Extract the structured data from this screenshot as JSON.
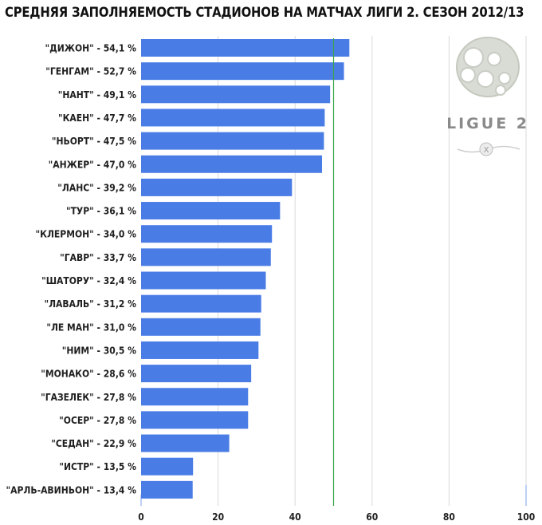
{
  "chart_data": {
    "type": "bar",
    "orientation": "horizontal",
    "title": "СРЕДНЯЯ ЗАПОЛНЯЕМОСТЬ СТАДИОНОВ НА МАТЧАХ ЛИГИ 2. СЕЗОН 2012/13",
    "categories": [
      "\"ДИЖОН\" - 54,1 %",
      "\"ГЕНГАМ\" - 52,7 %",
      "\"НАНТ\" - 49,1 %",
      "\"КАЕН\" - 47,7 %",
      "\"НЬОРТ\" - 47,5 %",
      "\"АНЖЕР\" - 47,0 %",
      "\"ЛАНС\" - 39,2 %",
      "\"ТУР\" - 36,1 %",
      "\"КЛЕРМОН\" - 34,0 %",
      "\"ГАВР\" - 33,7 %",
      "\"ШАТОРУ\" - 32,4 %",
      "\"ЛАВАЛЬ\" - 31,2 %",
      "\"ЛЕ МАН\" - 31,0 %",
      "\"НИМ\" - 30,5 %",
      "\"МОНАКО\" - 28,6 %",
      "\"ГАЗЕЛЕК\" - 27,8 %",
      "\"ОСЕР\" - 27,8 %",
      "\"СЕДАН\" - 22,9 %",
      "\"ИСТР\" - 13,5 %",
      "\"АРЛЬ-АВИНЬОН\" - 13,4 %"
    ],
    "values": [
      54.1,
      52.7,
      49.1,
      47.7,
      47.5,
      47.0,
      39.2,
      36.1,
      34.0,
      33.7,
      32.4,
      31.2,
      31.0,
      30.5,
      28.6,
      27.8,
      27.8,
      22.9,
      13.5,
      13.4
    ],
    "xlim": [
      0,
      100
    ],
    "xticks": [
      0,
      20,
      40,
      60,
      80,
      100
    ],
    "reference_line": 50,
    "grid": true,
    "colors": {
      "bar": "#4a7ce6",
      "reference_line": "#3aa64a",
      "grid": "#d9d9d9"
    }
  },
  "logo": {
    "text": "LIGUE 2"
  }
}
